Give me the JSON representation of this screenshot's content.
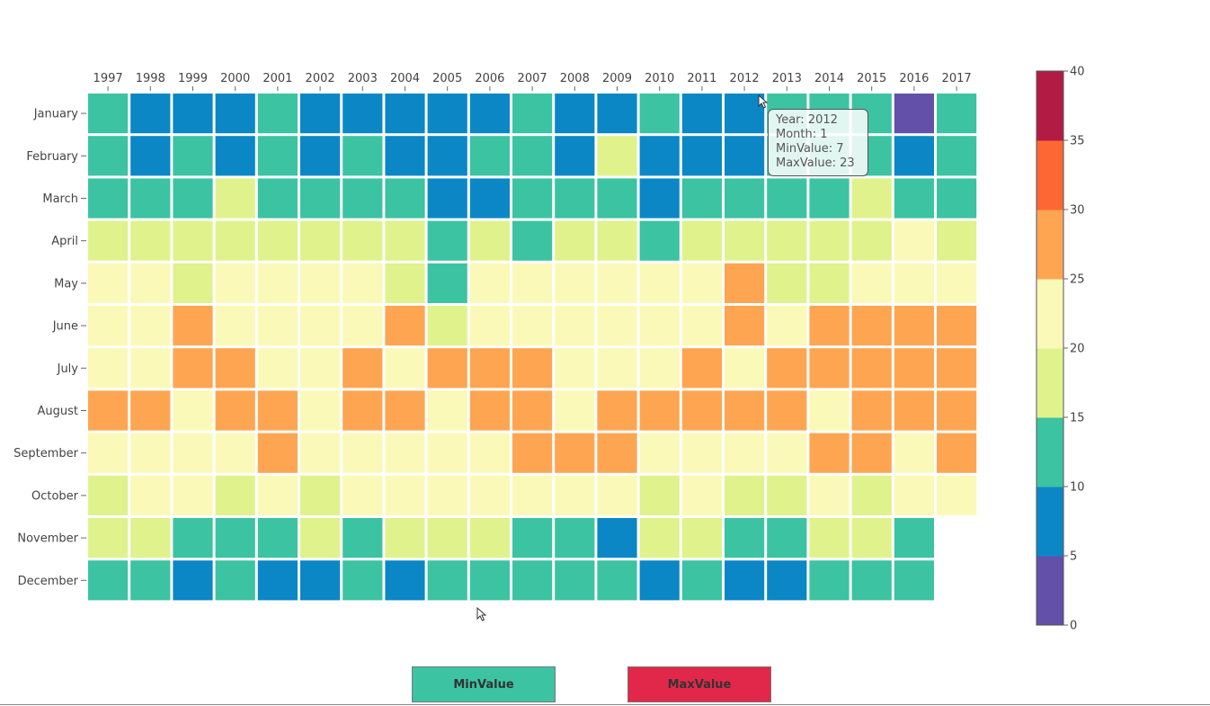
{
  "chart_data": {
    "type": "heatmap",
    "x_categories": [
      "1997",
      "1998",
      "1999",
      "2000",
      "2001",
      "2002",
      "2003",
      "2004",
      "2005",
      "2006",
      "2007",
      "2008",
      "2009",
      "2010",
      "2011",
      "2012",
      "2013",
      "2014",
      "2015",
      "2016",
      "2017"
    ],
    "y_categories": [
      "January",
      "February",
      "March",
      "April",
      "May",
      "June",
      "July",
      "August",
      "September",
      "October",
      "November",
      "December"
    ],
    "values": [
      [
        12,
        7,
        7,
        7,
        12,
        7,
        7,
        7,
        7,
        7,
        12,
        7,
        7,
        12,
        7,
        7,
        12,
        12,
        12,
        3,
        12
      ],
      [
        12,
        7,
        12,
        7,
        12,
        7,
        12,
        7,
        7,
        12,
        12,
        7,
        17,
        7,
        7,
        7,
        12,
        12,
        12,
        7,
        12
      ],
      [
        12,
        12,
        12,
        17,
        12,
        12,
        12,
        12,
        7,
        7,
        12,
        12,
        12,
        7,
        12,
        12,
        12,
        12,
        17,
        12,
        12
      ],
      [
        17,
        17,
        17,
        17,
        17,
        17,
        17,
        17,
        12,
        17,
        12,
        17,
        17,
        12,
        17,
        17,
        17,
        17,
        17,
        22,
        17
      ],
      [
        22,
        22,
        17,
        22,
        22,
        22,
        22,
        17,
        12,
        22,
        22,
        22,
        22,
        22,
        22,
        27,
        17,
        17,
        22,
        22,
        22
      ],
      [
        22,
        22,
        27,
        22,
        22,
        22,
        22,
        27,
        17,
        22,
        22,
        22,
        22,
        22,
        22,
        27,
        22,
        27,
        27,
        27,
        27
      ],
      [
        22,
        22,
        27,
        27,
        22,
        22,
        27,
        22,
        27,
        27,
        27,
        22,
        22,
        22,
        27,
        22,
        27,
        27,
        27,
        27,
        27
      ],
      [
        27,
        27,
        22,
        27,
        27,
        22,
        27,
        27,
        22,
        27,
        27,
        22,
        27,
        27,
        27,
        27,
        27,
        22,
        27,
        27,
        27
      ],
      [
        22,
        22,
        22,
        22,
        27,
        22,
        22,
        22,
        22,
        22,
        27,
        27,
        27,
        22,
        22,
        22,
        22,
        27,
        27,
        22,
        27
      ],
      [
        17,
        22,
        22,
        17,
        22,
        17,
        22,
        22,
        22,
        22,
        22,
        22,
        22,
        17,
        22,
        17,
        17,
        22,
        17,
        22,
        22
      ],
      [
        17,
        17,
        12,
        12,
        12,
        17,
        12,
        17,
        17,
        17,
        12,
        12,
        7,
        17,
        17,
        12,
        12,
        17,
        17,
        12,
        null
      ],
      [
        12,
        12,
        7,
        12,
        7,
        7,
        12,
        7,
        12,
        12,
        12,
        12,
        12,
        7,
        12,
        7,
        7,
        12,
        12,
        12,
        null
      ]
    ],
    "colorbar": {
      "ticks": [
        0,
        5,
        10,
        15,
        20,
        25,
        30,
        35,
        40
      ],
      "colors": [
        "#6350a8",
        "#0b87c6",
        "#3cc3a2",
        "#e0f28c",
        "#fbf9b8",
        "#fea552",
        "#fd6734",
        "#b11b44"
      ]
    },
    "legend_placement": "right"
  },
  "tooltip": {
    "lines": [
      "Year: 2012",
      "Month: 1",
      "MinValue: 7",
      "MaxValue: 23"
    ]
  },
  "buttons": {
    "min_label": "MinValue",
    "max_label": "MaxValue",
    "min_color": "#3cc3a2",
    "max_color": "#e2284a"
  }
}
